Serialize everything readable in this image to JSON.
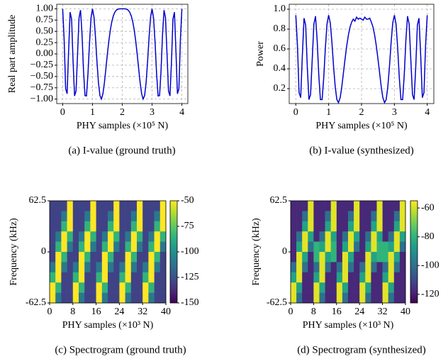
{
  "chart_data": [
    {
      "type": "line",
      "caption": "(a) I-value (ground truth)",
      "xlabel": "PHY samples (×10⁵ N)",
      "ylabel": "Real part amplitude",
      "color": "#0000cc",
      "grid": true,
      "xlim": [
        -0.2,
        4.2
      ],
      "ylim": [
        -1.1,
        1.1
      ],
      "xticks": [
        0,
        1,
        2,
        3,
        4
      ],
      "yticks": [
        {
          "value": 1,
          "label": "1.00"
        },
        {
          "value": 0.75,
          "label": "0.75"
        },
        {
          "value": 0.5,
          "label": "0.50"
        },
        {
          "value": 0.25,
          "label": "0.25"
        },
        {
          "value": 0,
          "label": "0.00"
        },
        {
          "value": -0.25,
          "label": "−0.25"
        },
        {
          "value": -0.5,
          "label": "−0.50"
        },
        {
          "value": -0.75,
          "label": "−0.75"
        },
        {
          "value": -1,
          "label": "−1.00"
        }
      ],
      "x": [
        0,
        0.05,
        0.1,
        0.15,
        0.2,
        0.25,
        0.3,
        0.35,
        0.4,
        0.45,
        0.5,
        0.55,
        0.6,
        0.65,
        0.7,
        0.75,
        0.8,
        0.85,
        0.9,
        0.95,
        1,
        1.05,
        1.1,
        1.15,
        1.2,
        1.25,
        1.3,
        1.35,
        1.4,
        1.45,
        1.5,
        1.55,
        1.6,
        1.65,
        1.7,
        1.75,
        1.8,
        1.85,
        1.9,
        1.95,
        2,
        2.05,
        2.1,
        2.15,
        2.2,
        2.25,
        2.3,
        2.35,
        2.4,
        2.45,
        2.5,
        2.55,
        2.6,
        2.65,
        2.7,
        2.75,
        2.8,
        2.85,
        2.9,
        2.95,
        3,
        3.05,
        3.1,
        3.15,
        3.2,
        3.25,
        3.3,
        3.35,
        3.4,
        3.45,
        3.5,
        3.55,
        3.6,
        3.65,
        3.7,
        3.75,
        3.8,
        3.85,
        3.9,
        3.95,
        4
      ],
      "values": [
        1,
        0.324,
        -0.771,
        -0.882,
        0.063,
        0.924,
        0.771,
        -0.173,
        -0.93,
        -0.818,
        0,
        0.8,
        0.969,
        0.441,
        -0.368,
        -0.924,
        -0.93,
        -0.44,
        0.249,
        0.8,
        1,
        0.815,
        0.368,
        -0.173,
        -0.637,
        -0.924,
        -0.998,
        -0.882,
        -0.637,
        -0.324,
        0,
        0.294,
        0.536,
        0.718,
        0.844,
        0.924,
        0.969,
        0.99,
        0.998,
        1,
        1,
        1,
        0.998,
        0.99,
        0.969,
        0.924,
        0.844,
        0.718,
        0.536,
        0.294,
        0,
        -0.324,
        -0.637,
        -0.882,
        -0.998,
        -0.924,
        -0.637,
        -0.173,
        0.368,
        0.815,
        1,
        0.8,
        0.249,
        -0.44,
        -0.93,
        -0.924,
        -0.368,
        0.441,
        0.969,
        0.8,
        0,
        -0.818,
        -0.93,
        -0.173,
        0.771,
        0.924,
        0.063,
        -0.882,
        -0.771,
        0.324,
        1
      ]
    },
    {
      "type": "line",
      "caption": "(b) I-value (synthesized)",
      "xlabel": "PHY samples (×10⁵ N)",
      "ylabel": "Power",
      "color": "#0000cc",
      "grid": true,
      "xlim": [
        -0.2,
        4.2
      ],
      "ylim": [
        0.05,
        1.05
      ],
      "xticks": [
        0,
        1,
        2,
        3,
        4
      ],
      "yticks": [
        0.2,
        0.4,
        0.6,
        0.8,
        {
          "value": 1,
          "label": "1.0"
        }
      ],
      "x": [
        0,
        0.05,
        0.1,
        0.15,
        0.2,
        0.25,
        0.3,
        0.35,
        0.4,
        0.45,
        0.5,
        0.55,
        0.6,
        0.65,
        0.7,
        0.75,
        0.8,
        0.85,
        0.9,
        0.95,
        1,
        1.05,
        1.1,
        1.15,
        1.2,
        1.25,
        1.3,
        1.35,
        1.4,
        1.45,
        1.5,
        1.55,
        1.6,
        1.65,
        1.7,
        1.75,
        1.8,
        1.85,
        1.9,
        1.95,
        2,
        2.05,
        2.1,
        2.15,
        2.2,
        2.25,
        2.3,
        2.35,
        2.4,
        2.45,
        2.5,
        2.55,
        2.6,
        2.65,
        2.7,
        2.75,
        2.8,
        2.85,
        2.9,
        2.95,
        3,
        3.05,
        3.1,
        3.15,
        3.2,
        3.25,
        3.3,
        3.35,
        3.4,
        3.45,
        3.5,
        3.55,
        3.6,
        3.65,
        3.7,
        3.75,
        3.8,
        3.85,
        3.9,
        3.95,
        4
      ],
      "values": [
        0.94,
        0.64,
        0.16,
        0.11,
        0.53,
        0.91,
        0.84,
        0.42,
        0.09,
        0.14,
        0.5,
        0.85,
        0.93,
        0.69,
        0.34,
        0.09,
        0.09,
        0.31,
        0.61,
        0.85,
        0.94,
        0.86,
        0.66,
        0.42,
        0.22,
        0.09,
        0.06,
        0.11,
        0.22,
        0.36,
        0.5,
        0.63,
        0.74,
        0.82,
        0.87,
        0.9,
        0.88,
        0.92,
        0.9,
        0.91,
        0.9,
        0.89,
        0.92,
        0.9,
        0.9,
        0.91,
        0.87,
        0.82,
        0.74,
        0.63,
        0.5,
        0.36,
        0.22,
        0.11,
        0.06,
        0.09,
        0.22,
        0.42,
        0.66,
        0.86,
        0.94,
        0.85,
        0.61,
        0.31,
        0.09,
        0.09,
        0.34,
        0.69,
        0.93,
        0.85,
        0.5,
        0.14,
        0.09,
        0.42,
        0.84,
        0.91,
        0.53,
        0.11,
        0.16,
        0.64,
        0.94
      ]
    },
    {
      "type": "heatmap",
      "caption": "(c) Spectrogram (ground truth)",
      "xlabel": "PHY samples (×10³ N)",
      "ylabel": "Frequency (kHz)",
      "colormap": "viridis",
      "xlim": [
        0,
        40
      ],
      "ylim": [
        -62.5,
        62.5
      ],
      "xticks": [
        0,
        8,
        16,
        24,
        32,
        40
      ],
      "yticks": [
        -62.5,
        0,
        62.5
      ],
      "zlim": [
        -150,
        -50
      ],
      "zticks": [
        -50,
        -75,
        -100,
        -125,
        -150
      ],
      "z": [
        [
          -130,
          -130,
          -130,
          -50,
          -130,
          -130,
          -130,
          -50,
          -130,
          -130,
          -130,
          -50,
          -130,
          -130,
          -130,
          -50,
          -130,
          -130,
          -130,
          -50
        ],
        [
          -130,
          -130,
          -110,
          -50,
          -130,
          -130,
          -110,
          -50,
          -130,
          -130,
          -110,
          -50,
          -130,
          -130,
          -110,
          -50,
          -130,
          -130,
          -110,
          -50
        ],
        [
          -130,
          -130,
          -85,
          -50,
          -130,
          -130,
          -85,
          -50,
          -130,
          -130,
          -85,
          -50,
          -130,
          -130,
          -85,
          -50,
          -130,
          -130,
          -85,
          -50
        ],
        [
          -130,
          -110,
          -50,
          -85,
          -130,
          -110,
          -50,
          -85,
          -130,
          -110,
          -50,
          -85,
          -130,
          -110,
          -50,
          -85,
          -130,
          -110,
          -50,
          -85
        ],
        [
          -130,
          -85,
          -50,
          -110,
          -130,
          -85,
          -50,
          -110,
          -130,
          -85,
          -50,
          -110,
          -130,
          -85,
          -50,
          -110,
          -130,
          -85,
          -50,
          -110
        ],
        [
          -130,
          -50,
          -85,
          -130,
          -130,
          -50,
          -85,
          -130,
          -130,
          -50,
          -85,
          -130,
          -130,
          -50,
          -85,
          -130,
          -130,
          -50,
          -85,
          -130
        ],
        [
          -110,
          -50,
          -110,
          -130,
          -110,
          -50,
          -110,
          -130,
          -110,
          -50,
          -110,
          -130,
          -110,
          -50,
          -110,
          -130,
          -110,
          -50,
          -110,
          -130
        ],
        [
          -85,
          -50,
          -130,
          -130,
          -85,
          -50,
          -130,
          -130,
          -85,
          -50,
          -130,
          -130,
          -85,
          -50,
          -130,
          -130,
          -85,
          -50,
          -130,
          -130
        ],
        [
          -50,
          -85,
          -130,
          -130,
          -50,
          -85,
          -130,
          -130,
          -50,
          -85,
          -130,
          -130,
          -50,
          -85,
          -130,
          -130,
          -50,
          -85,
          -130,
          -130
        ],
        [
          -50,
          -110,
          -130,
          -130,
          -50,
          -110,
          -130,
          -130,
          -50,
          -110,
          -130,
          -130,
          -50,
          -110,
          -130,
          -130,
          -50,
          -110,
          -130,
          -130
        ]
      ]
    },
    {
      "type": "heatmap",
      "caption": "(d) Spectrogram (synthesized)",
      "xlabel": "PHY samples (×10³ N)",
      "ylabel": "Frequency (kHz)",
      "colormap": "viridis",
      "xlim": [
        0,
        40
      ],
      "ylim": [
        -62.5,
        62.5
      ],
      "xticks": [
        0,
        8,
        16,
        24,
        32,
        40
      ],
      "yticks": [
        -62.5,
        0,
        62.5
      ],
      "zlim": [
        -126,
        -55
      ],
      "zticks": [
        -60,
        -80,
        -100,
        -120
      ],
      "z": [
        [
          -118,
          -118,
          -118,
          -58,
          -118,
          -118,
          -118,
          -58,
          -118,
          -118,
          -118,
          -58,
          -118,
          -118,
          -118,
          -58,
          -118,
          -118,
          -118,
          -58
        ],
        [
          -118,
          -118,
          -100,
          -58,
          -118,
          -118,
          -100,
          -58,
          -118,
          -118,
          -100,
          -58,
          -118,
          -118,
          -100,
          -58,
          -118,
          -118,
          -100,
          -58
        ],
        [
          -118,
          -118,
          -85,
          -58,
          -118,
          -118,
          -85,
          -58,
          -118,
          -118,
          -85,
          -58,
          -118,
          -118,
          -85,
          -58,
          -118,
          -118,
          -85,
          -58
        ],
        [
          -118,
          -100,
          -58,
          -85,
          -118,
          -100,
          -58,
          -85,
          -118,
          -100,
          -58,
          -85,
          -118,
          -100,
          -58,
          -85,
          -118,
          -100,
          -58,
          -85
        ],
        [
          -118,
          -85,
          -58,
          -100,
          -80,
          -85,
          -58,
          -80,
          -118,
          -85,
          -58,
          -100,
          -118,
          -85,
          -58,
          -80,
          -80,
          -85,
          -58,
          -100
        ],
        [
          -118,
          -58,
          -85,
          -118,
          -80,
          -58,
          -85,
          -80,
          -118,
          -58,
          -85,
          -118,
          -118,
          -58,
          -85,
          -80,
          -80,
          -58,
          -85,
          -118
        ],
        [
          -100,
          -58,
          -100,
          -118,
          -100,
          -58,
          -100,
          -118,
          -100,
          -58,
          -100,
          -118,
          -100,
          -58,
          -100,
          -118,
          -100,
          -58,
          -100,
          -118
        ],
        [
          -85,
          -58,
          -118,
          -118,
          -85,
          -58,
          -118,
          -118,
          -85,
          -58,
          -118,
          -118,
          -85,
          -58,
          -118,
          -118,
          -85,
          -58,
          -118,
          -118
        ],
        [
          -58,
          -85,
          -118,
          -118,
          -58,
          -85,
          -118,
          -118,
          -58,
          -85,
          -118,
          -118,
          -58,
          -85,
          -118,
          -118,
          -58,
          -85,
          -118,
          -118
        ],
        [
          -58,
          -100,
          -118,
          -118,
          -58,
          -100,
          -118,
          -118,
          -58,
          -100,
          -118,
          -118,
          -58,
          -100,
          -118,
          -118,
          -58,
          -100,
          -118,
          -118
        ]
      ]
    }
  ]
}
